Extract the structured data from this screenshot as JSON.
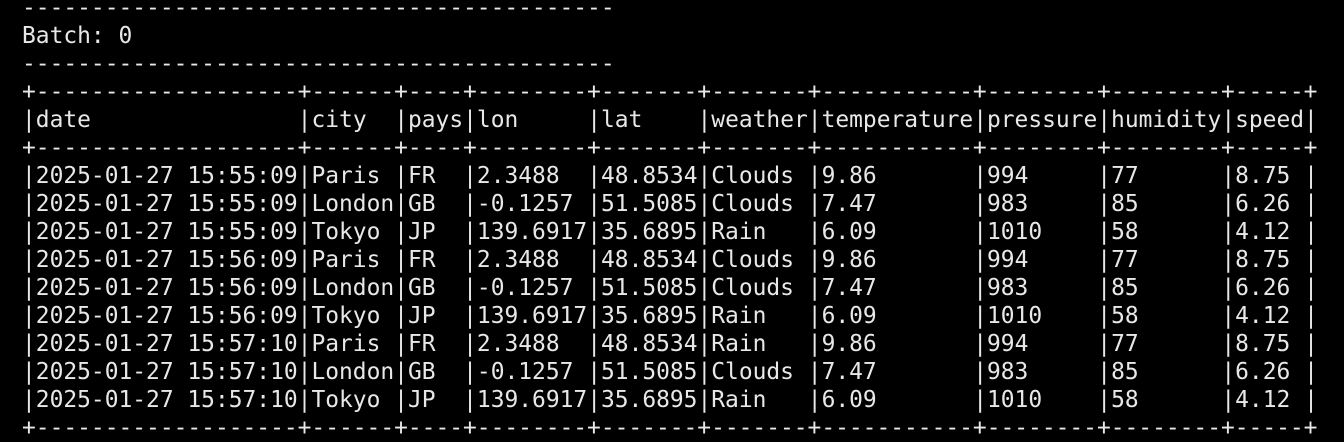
{
  "header": {
    "title": "Batch: 0"
  },
  "table": {
    "columns": [
      "date",
      "city",
      "pays",
      "lon",
      "lat",
      "weather",
      "temperature",
      "pressure",
      "humidity",
      "speed"
    ],
    "rows": [
      [
        "2025-01-27 15:55:09",
        "Paris",
        "FR",
        "2.3488",
        "48.8534",
        "Clouds",
        "9.86",
        "994",
        "77",
        "8.75"
      ],
      [
        "2025-01-27 15:55:09",
        "London",
        "GB",
        "-0.1257",
        "51.5085",
        "Clouds",
        "7.47",
        "983",
        "85",
        "6.26"
      ],
      [
        "2025-01-27 15:55:09",
        "Tokyo",
        "JP",
        "139.6917",
        "35.6895",
        "Rain",
        "6.09",
        "1010",
        "58",
        "4.12"
      ],
      [
        "2025-01-27 15:56:09",
        "Paris",
        "FR",
        "2.3488",
        "48.8534",
        "Clouds",
        "9.86",
        "994",
        "77",
        "8.75"
      ],
      [
        "2025-01-27 15:56:09",
        "London",
        "GB",
        "-0.1257",
        "51.5085",
        "Clouds",
        "7.47",
        "983",
        "85",
        "6.26"
      ],
      [
        "2025-01-27 15:56:09",
        "Tokyo",
        "JP",
        "139.6917",
        "35.6895",
        "Rain",
        "6.09",
        "1010",
        "58",
        "4.12"
      ],
      [
        "2025-01-27 15:57:10",
        "Paris",
        "FR",
        "2.3488",
        "48.8534",
        "Rain",
        "9.86",
        "994",
        "77",
        "8.75"
      ],
      [
        "2025-01-27 15:57:10",
        "London",
        "GB",
        "-0.1257",
        "51.5085",
        "Clouds",
        "7.47",
        "983",
        "85",
        "6.26"
      ],
      [
        "2025-01-27 15:57:10",
        "Tokyo",
        "JP",
        "139.6917",
        "35.6895",
        "Rain",
        "6.09",
        "1010",
        "58",
        "4.12"
      ]
    ]
  }
}
